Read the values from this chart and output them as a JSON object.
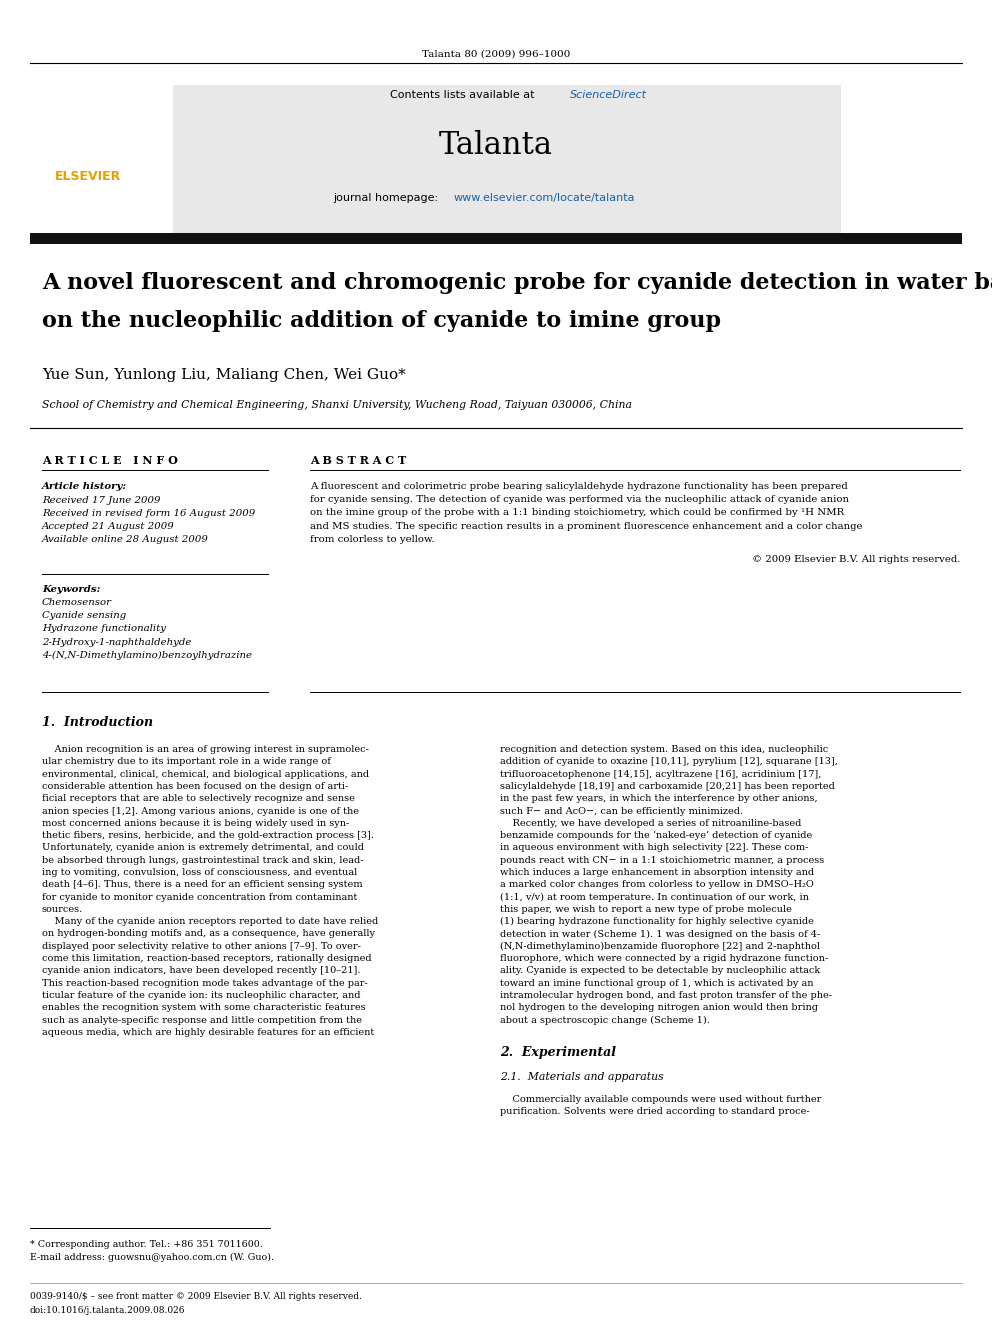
{
  "page_width": 9.92,
  "page_height": 13.23,
  "background_color": "#ffffff",
  "top_journal_ref": "Talanta 80 (2009) 996–1000",
  "header_bg": "#e8e8e8",
  "header_contents": "Contents lists available at ScienceDirect",
  "header_sciencedirect_color": "#1a5fa8",
  "journal_name": "Talanta",
  "journal_homepage_url_color": "#1a5fa8",
  "title_line1": "A novel fluorescent and chromogenic probe for cyanide detection in water based",
  "title_line2": "on the nucleophilic addition of cyanide to imine group",
  "authors": "Yue Sun, Yunlong Liu, Maliang Chen, Wei Guo*",
  "affiliation": "School of Chemistry and Chemical Engineering, Shanxi University, Wucheng Road, Taiyuan 030006, China",
  "separator_color": "#000000",
  "article_info_header": "A R T I C L E   I N F O",
  "abstract_header": "A B S T R A C T",
  "article_history_label": "Article history:",
  "received": "Received 17 June 2009",
  "received_revised": "Received in revised form 16 August 2009",
  "accepted": "Accepted 21 August 2009",
  "available": "Available online 28 August 2009",
  "keywords_label": "Keywords:",
  "keywords": [
    "Chemosensor",
    "Cyanide sensing",
    "Hydrazone functionality",
    "2-Hydroxy-1-naphthaldehyde",
    "4-(N,N-Dimethylamino)benzoylhydrazine"
  ],
  "copyright": "© 2009 Elsevier B.V. All rights reserved.",
  "intro_header": "1.  Introduction",
  "experimental_header": "2.  Experimental",
  "materials_header": "2.1.  Materials and apparatus",
  "materials_text": "    Commercially available compounds were used without further purification. Solvents were dried according to standard proce-",
  "footnote_star": "* Corresponding author. Tel.: +86 351 7011600.",
  "footnote_email": "E-mail address: guowsnu@yahoo.com.cn (W. Guo).",
  "footer_issn": "0039-9140/$ – see front matter © 2009 Elsevier B.V. All rights reserved.",
  "footer_doi": "doi:10.1016/j.talanta.2009.08.026",
  "link_color": "#1a5fa8",
  "abstract_lines": [
    "A fluorescent and colorimetric probe bearing salicylaldehyde hydrazone functionality has been prepared",
    "for cyanide sensing. The detection of cyanide was performed via the nucleophilic attack of cyanide anion",
    "on the imine group of the probe with a 1:1 binding stoichiometry, which could be confirmed by ¹H NMR",
    "and MS studies. The specific reaction results in a prominent fluorescence enhancement and a color change",
    "from colorless to yellow."
  ],
  "intro_col1_lines": [
    "    Anion recognition is an area of growing interest in supramolec-",
    "ular chemistry due to its important role in a wide range of",
    "environmental, clinical, chemical, and biological applications, and",
    "considerable attention has been focused on the design of arti-",
    "ficial receptors that are able to selectively recognize and sense",
    "anion species [1,2]. Among various anions, cyanide is one of the",
    "most concerned anions because it is being widely used in syn-",
    "thetic fibers, resins, herbicide, and the gold-extraction process [3].",
    "Unfortunately, cyanide anion is extremely detrimental, and could",
    "be absorbed through lungs, gastrointestinal track and skin, lead-",
    "ing to vomiting, convulsion, loss of consciousness, and eventual",
    "death [4–6]. Thus, there is a need for an efficient sensing system",
    "for cyanide to monitor cyanide concentration from contaminant",
    "sources.",
    "    Many of the cyanide anion receptors reported to date have relied",
    "on hydrogen-bonding motifs and, as a consequence, have generally",
    "displayed poor selectivity relative to other anions [7–9]. To over-",
    "come this limitation, reaction-based receptors, rationally designed",
    "cyanide anion indicators, have been developed recently [10–21].",
    "This reaction-based recognition mode takes advantage of the par-",
    "ticular feature of the cyanide ion: its nucleophilic character, and",
    "enables the recognition system with some characteristic features",
    "such as analyte-specific response and little competition from the",
    "aqueous media, which are highly desirable features for an efficient"
  ],
  "intro_col2_lines": [
    "recognition and detection system. Based on this idea, nucleophilic",
    "addition of cyanide to oxazine [10,11], pyrylium [12], squarane [13],",
    "trifluoroacetophenone [14,15], acyltrazene [16], acridinium [17],",
    "salicylaldehyde [18,19] and carboxamide [20,21] has been reported",
    "in the past few years, in which the interference by other anions,",
    "such F− and AcO−, can be efficiently minimized.",
    "    Recently, we have developed a series of nitroaniline-based",
    "benzamide compounds for the ‘naked-eye’ detection of cyanide",
    "in aqueous environment with high selectivity [22]. These com-",
    "pounds react with CN− in a 1:1 stoichiometric manner, a process",
    "which induces a large enhancement in absorption intensity and",
    "a marked color changes from colorless to yellow in DMSO–H₂O",
    "(1:1, v/v) at room temperature. In continuation of our work, in",
    "this paper, we wish to report a new type of probe molecule",
    "(1) bearing hydrazone functionality for highly selective cyanide",
    "detection in water (Scheme 1). 1 was designed on the basis of 4-",
    "(N,N-dimethylamino)benzamide fluorophore [22] and 2-naphthol",
    "fluorophore, which were connected by a rigid hydrazone function-",
    "ality. Cyanide is expected to be detectable by nucleophilic attack",
    "toward an imine functional group of 1, which is activated by an",
    "intramolecular hydrogen bond, and fast proton transfer of the phe-",
    "nol hydrogen to the developing nitrogen anion would then bring",
    "about a spectroscopic change (Scheme 1)."
  ]
}
